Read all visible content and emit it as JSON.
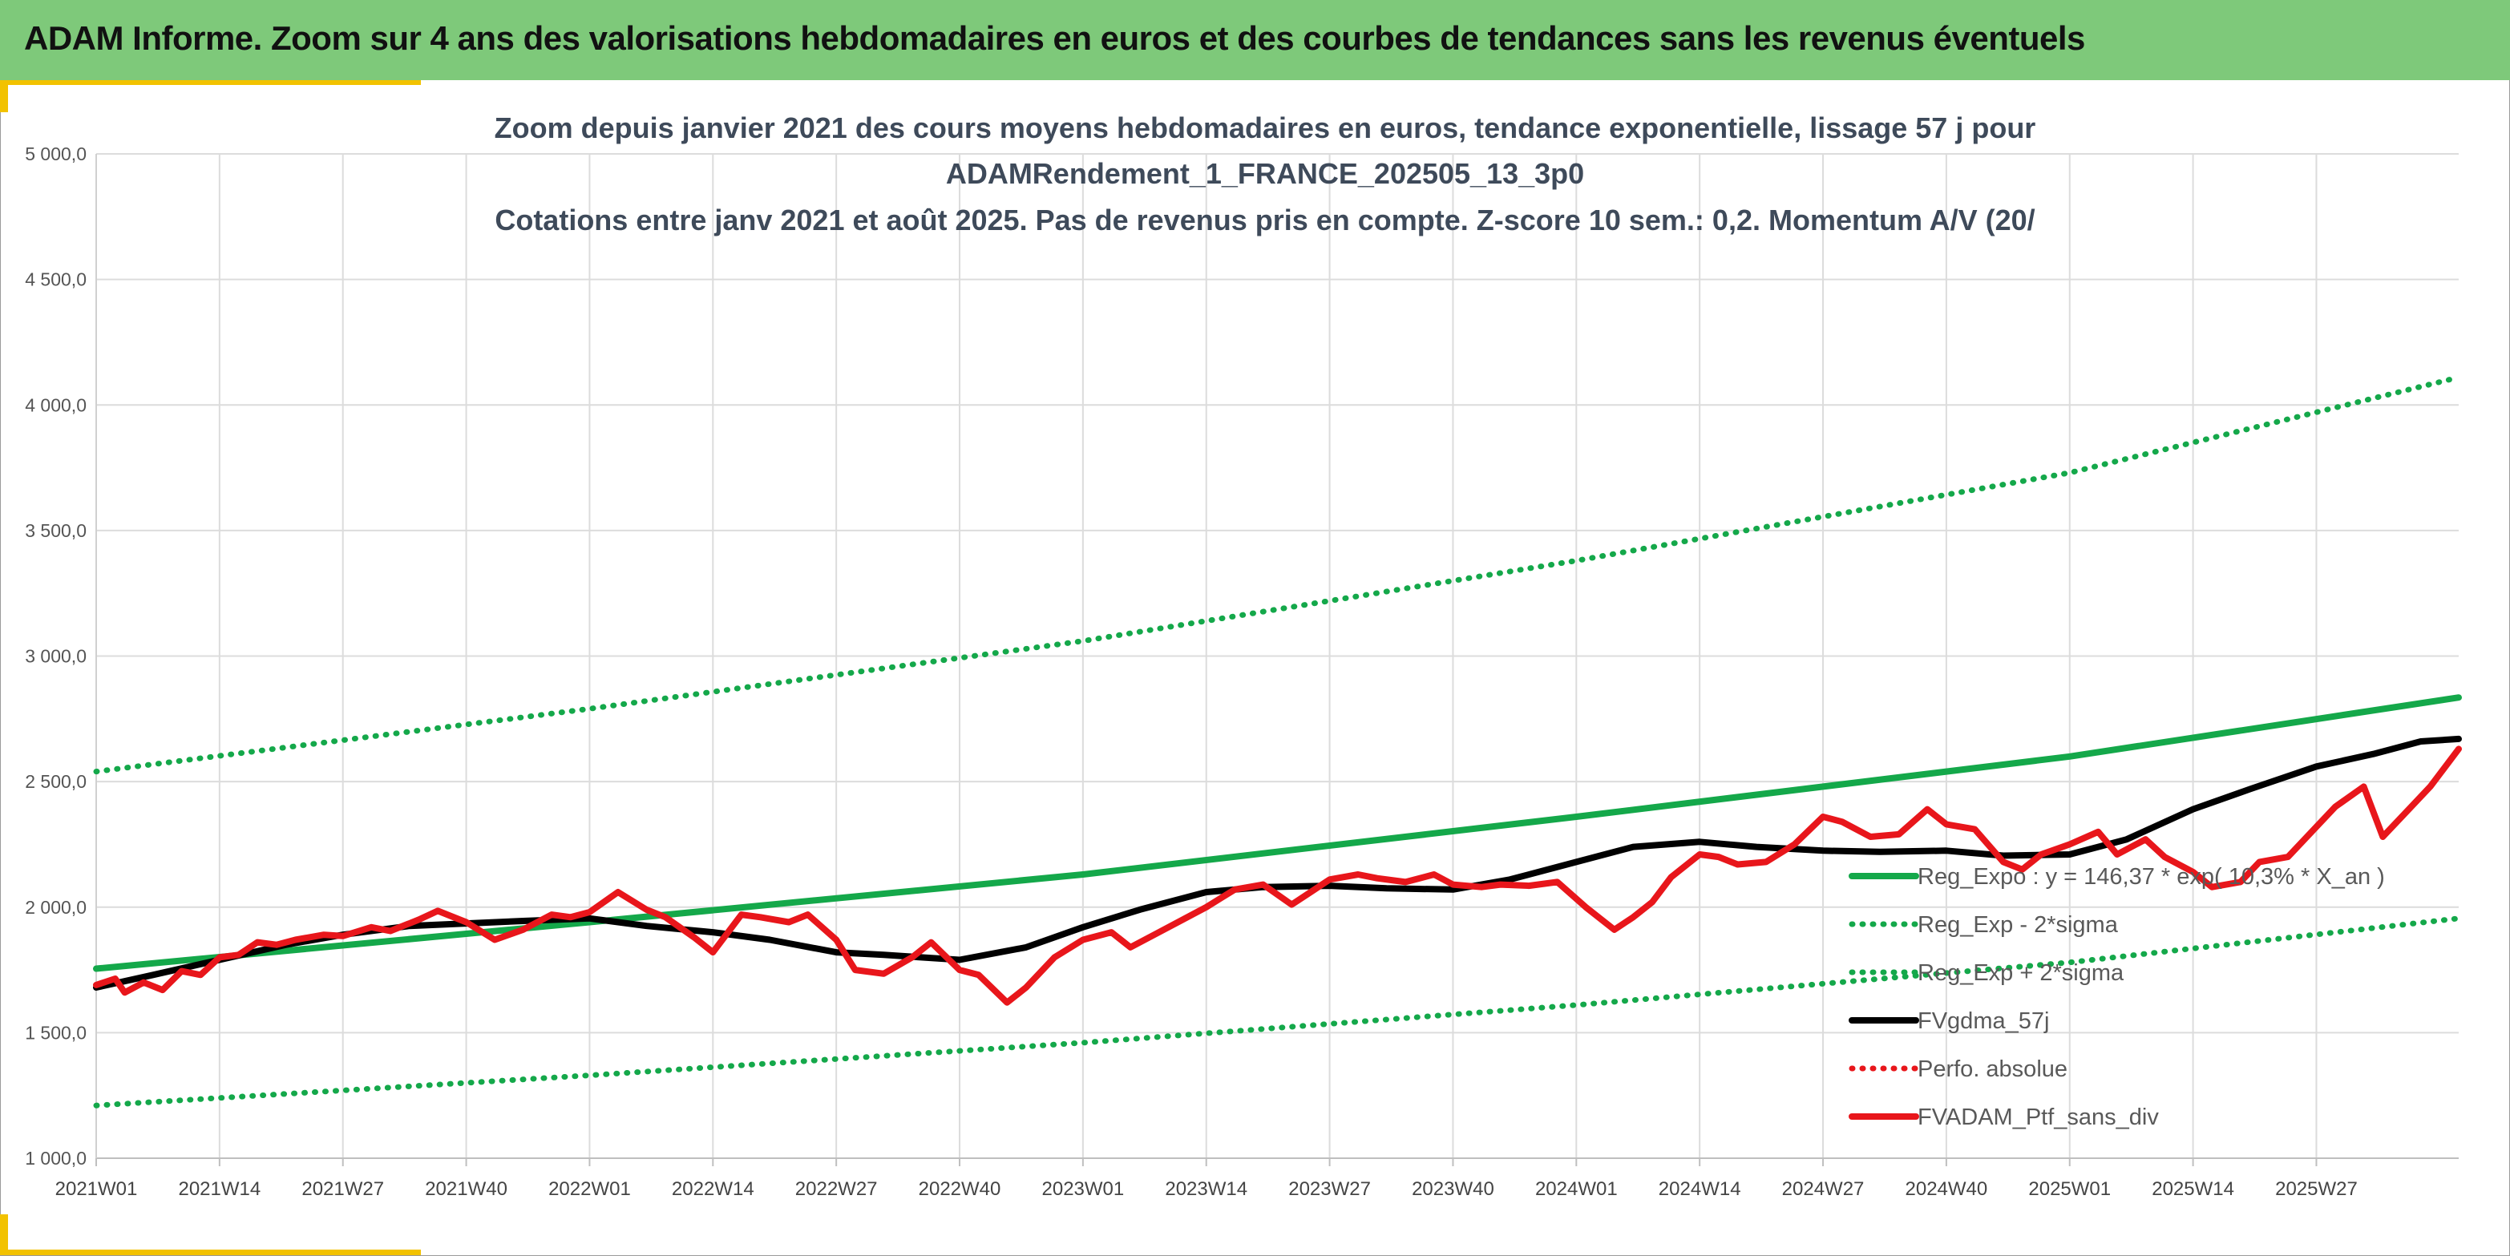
{
  "banner": {
    "title": "ADAM Informe. Zoom sur 4 ans des valorisations hebdomadaires en euros et des courbes de tendances sans les revenus éventuels"
  },
  "colors": {
    "banner_green": "#7ec97a",
    "accent_yellow": "#f2c200",
    "trend_green": "#14a84a",
    "price_red": "#e8161b",
    "moving_average_black": "#000000"
  },
  "chart_data": {
    "type": "line",
    "title_lines": [
      "Zoom depuis janvier 2021 des cours moyens hebdomadaires en euros, tendance exponentielle, lissage 57 j pour",
      "ADAMRendement_1_FRANCE_202505_13_3p0",
      "Cotations entre janv 2021 et août 2025. Pas de revenus pris en compte. Z-score 10 sem.: 0,2. Momentum A/V (20/"
    ],
    "ylim": [
      1000,
      5000
    ],
    "yticks": [
      "1 000,0",
      "1 500,0",
      "2 000,0",
      "2 500,0",
      "3 000,0",
      "3 500,0",
      "4 000,0",
      "4 500,0",
      "5 000,0"
    ],
    "xticks": [
      "2021W01",
      "2021W14",
      "2021W27",
      "2021W40",
      "2022W01",
      "2022W14",
      "2022W27",
      "2022W40",
      "2023W01",
      "2023W14",
      "2023W27",
      "2023W40",
      "2024W01",
      "2024W14",
      "2024W27",
      "2024W40",
      "2025W01",
      "2025W14",
      "2025W27"
    ],
    "x_tick_step_weeks": 13,
    "x_range_weeks": [
      0,
      249
    ],
    "grid": true,
    "legend_position": "bottom-right",
    "series": [
      {
        "name": "Reg_Expo : y = 146,37 * exp( 10,3% *  X_an )",
        "style": "solid",
        "color": "#14a84a",
        "x": [
          0,
          52,
          104,
          156,
          208,
          249
        ],
        "values": [
          1755,
          1940,
          2130,
          2360,
          2600,
          2835
        ]
      },
      {
        "name": "Reg_Exp - 2*sigma",
        "style": "dotted",
        "color": "#14a84a",
        "x": [
          0,
          52,
          104,
          156,
          208,
          249
        ],
        "values": [
          1210,
          1330,
          1460,
          1610,
          1780,
          1955
        ]
      },
      {
        "name": "Reg_Exp + 2*sigma",
        "style": "dotted",
        "color": "#14a84a",
        "x": [
          0,
          52,
          104,
          156,
          208,
          249
        ],
        "values": [
          2540,
          2790,
          3060,
          3380,
          3730,
          4110
        ]
      },
      {
        "name": "FVgdma_57j",
        "style": "solid",
        "color": "#000000",
        "x": [
          0,
          6,
          13,
          20,
          26,
          33,
          39,
          45,
          52,
          58,
          65,
          71,
          78,
          83,
          91,
          98,
          104,
          110,
          117,
          123,
          130,
          136,
          143,
          149,
          156,
          162,
          169,
          175,
          182,
          188,
          195,
          201,
          208,
          214,
          221,
          227,
          234,
          240,
          245,
          249
        ],
        "values": [
          1680,
          1730,
          1790,
          1850,
          1890,
          1925,
          1935,
          1945,
          1955,
          1925,
          1900,
          1870,
          1820,
          1810,
          1790,
          1840,
          1920,
          1990,
          2060,
          2080,
          2085,
          2075,
          2070,
          2110,
          2180,
          2240,
          2260,
          2240,
          2225,
          2220,
          2225,
          2205,
          2210,
          2270,
          2390,
          2470,
          2560,
          2610,
          2660,
          2670
        ]
      },
      {
        "name": "Perfo. absolue",
        "style": "dotted",
        "color": "#e8161b",
        "x": [],
        "values": []
      },
      {
        "name": "FVADAM_Ptf_sans_div",
        "style": "solid",
        "color": "#e8161b",
        "x": [
          0,
          2,
          3,
          5,
          7,
          9,
          11,
          13,
          15,
          17,
          19,
          21,
          24,
          26,
          29,
          31,
          34,
          36,
          39,
          42,
          45,
          48,
          50,
          52,
          55,
          58,
          60,
          63,
          65,
          68,
          70,
          73,
          75,
          78,
          80,
          83,
          86,
          88,
          91,
          93,
          96,
          98,
          101,
          104,
          107,
          109,
          112,
          115,
          117,
          120,
          123,
          126,
          128,
          130,
          133,
          135,
          138,
          141,
          143,
          146,
          148,
          151,
          154,
          157,
          160,
          162,
          164,
          166,
          169,
          171,
          173,
          176,
          179,
          182,
          184,
          187,
          190,
          193,
          195,
          198,
          201,
          203,
          205,
          208,
          211,
          213,
          216,
          218,
          221,
          223,
          226,
          228,
          231,
          234,
          236,
          239,
          241,
          244,
          246,
          248,
          249
        ],
        "values": [
          1690,
          1715,
          1660,
          1700,
          1670,
          1745,
          1730,
          1800,
          1810,
          1860,
          1850,
          1870,
          1890,
          1885,
          1920,
          1905,
          1950,
          1985,
          1940,
          1870,
          1910,
          1970,
          1960,
          1980,
          2060,
          1990,
          1960,
          1880,
          1820,
          1970,
          1960,
          1940,
          1970,
          1870,
          1750,
          1735,
          1800,
          1860,
          1750,
          1730,
          1620,
          1680,
          1800,
          1870,
          1900,
          1840,
          1900,
          1960,
          2000,
          2070,
          2090,
          2010,
          2060,
          2110,
          2130,
          2115,
          2100,
          2130,
          2090,
          2080,
          2090,
          2085,
          2100,
          2000,
          1910,
          1960,
          2020,
          2120,
          2210,
          2200,
          2170,
          2180,
          2250,
          2360,
          2340,
          2280,
          2290,
          2390,
          2330,
          2310,
          2180,
          2150,
          2210,
          2250,
          2300,
          2210,
          2270,
          2200,
          2140,
          2080,
          2100,
          2180,
          2200,
          2320,
          2400,
          2480,
          2280,
          2400,
          2480,
          2580,
          2630
        ]
      }
    ]
  }
}
